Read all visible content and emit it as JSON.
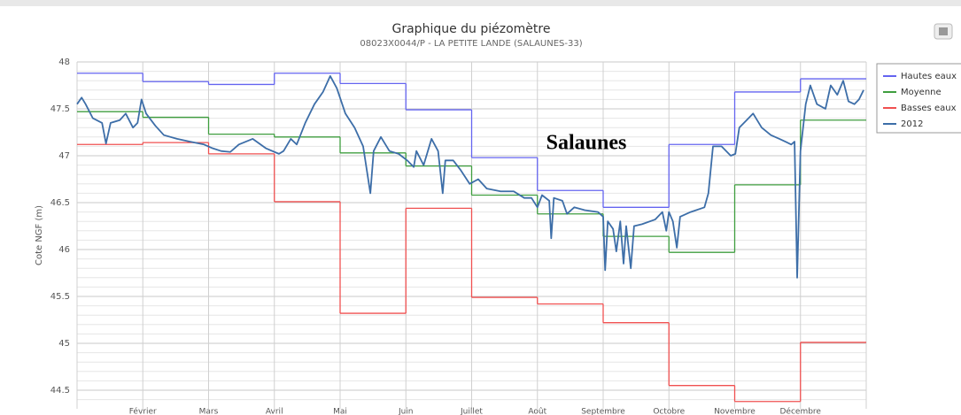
{
  "chart_data": {
    "type": "line",
    "title": "Graphique du piézomètre",
    "subtitle": "08023X0044/P - LA PETITE LANDE (SALAUNES-33)",
    "y_label": "Cote NGF (m)",
    "annotation": "Salaunes",
    "categories": [
      null,
      "Février",
      "Mars",
      "Avril",
      "Mai",
      "Juin",
      "Juillet",
      "Août",
      "Septembre",
      "Octobre",
      "Novembre",
      "Décembre"
    ],
    "xlim": [
      0,
      12
    ],
    "ylim": [
      44.3,
      48
    ],
    "yticks": [
      44.5,
      45,
      45.5,
      46,
      46.5,
      47,
      47.5,
      48
    ],
    "grid": true,
    "legend": "right",
    "series": [
      {
        "name": "Hautes eaux",
        "color": "#6464f0",
        "step": true,
        "values": [
          47.88,
          47.79,
          47.76,
          47.88,
          47.77,
          47.49,
          46.98,
          46.63,
          46.45,
          47.12,
          47.68,
          47.82
        ]
      },
      {
        "name": "Moyenne",
        "color": "#3f9e3f",
        "step": true,
        "values": [
          47.47,
          47.41,
          47.23,
          47.2,
          47.03,
          46.89,
          46.58,
          46.38,
          46.14,
          45.97,
          46.69,
          47.38
        ]
      },
      {
        "name": "Basses eaux",
        "color": "#f05050",
        "step": true,
        "values": [
          47.12,
          47.14,
          47.02,
          46.51,
          45.32,
          46.44,
          45.49,
          45.42,
          45.22,
          44.55,
          44.38,
          45.01
        ]
      },
      {
        "name": "2012",
        "color": "#3d6ea8",
        "step": false,
        "x": [
          0,
          0.07,
          0.13,
          0.24,
          0.38,
          0.44,
          0.51,
          0.65,
          0.74,
          0.85,
          0.92,
          0.98,
          1.05,
          1.19,
          1.32,
          1.52,
          1.72,
          1.93,
          2.06,
          2.19,
          2.33,
          2.46,
          2.67,
          2.87,
          3.07,
          3.14,
          3.25,
          3.34,
          3.47,
          3.61,
          3.74,
          3.85,
          3.95,
          4.08,
          4.22,
          4.35,
          4.46,
          4.51,
          4.62,
          4.75,
          4.89,
          5.02,
          5.12,
          5.16,
          5.27,
          5.39,
          5.49,
          5.56,
          5.6,
          5.72,
          5.83,
          5.97,
          6.1,
          6.23,
          6.44,
          6.64,
          6.8,
          6.91,
          7.0,
          7.07,
          7.18,
          7.21,
          7.25,
          7.38,
          7.45,
          7.56,
          7.72,
          7.92,
          8.0,
          8.03,
          8.07,
          8.15,
          8.2,
          8.26,
          8.31,
          8.35,
          8.42,
          8.47,
          8.59,
          8.79,
          8.9,
          8.96,
          9.0,
          9.06,
          9.12,
          9.17,
          9.33,
          9.54,
          9.6,
          9.67,
          9.8,
          9.94,
          10.01,
          10.07,
          10.21,
          10.28,
          10.41,
          10.55,
          10.68,
          10.86,
          10.91,
          10.95,
          11.0,
          11.08,
          11.15,
          11.25,
          11.38,
          11.46,
          11.56,
          11.65,
          11.73,
          11.82,
          11.89,
          11.96
        ],
        "values": [
          47.55,
          47.62,
          47.55,
          47.4,
          47.35,
          47.13,
          47.35,
          47.38,
          47.45,
          47.3,
          47.35,
          47.6,
          47.45,
          47.32,
          47.22,
          47.18,
          47.15,
          47.12,
          47.08,
          47.05,
          47.04,
          47.12,
          47.18,
          47.08,
          47.02,
          47.05,
          47.18,
          47.12,
          47.35,
          47.55,
          47.68,
          47.85,
          47.72,
          47.45,
          47.3,
          47.1,
          46.6,
          47.05,
          47.2,
          47.05,
          47.02,
          46.95,
          46.88,
          47.05,
          46.9,
          47.18,
          47.05,
          46.6,
          46.95,
          46.95,
          46.85,
          46.7,
          46.75,
          46.65,
          46.62,
          46.62,
          46.55,
          46.55,
          46.45,
          46.58,
          46.52,
          46.12,
          46.55,
          46.52,
          46.38,
          46.45,
          46.42,
          46.4,
          46.35,
          45.78,
          46.3,
          46.22,
          45.98,
          46.3,
          45.85,
          46.25,
          45.8,
          46.25,
          46.27,
          46.32,
          46.4,
          46.2,
          46.4,
          46.3,
          46.02,
          46.35,
          46.4,
          46.45,
          46.6,
          47.1,
          47.1,
          47.0,
          47.02,
          47.3,
          47.4,
          47.45,
          47.3,
          47.22,
          47.18,
          47.12,
          47.15,
          45.7,
          47.05,
          47.55,
          47.75,
          47.55,
          47.5,
          47.75,
          47.65,
          47.8,
          47.58,
          47.55,
          47.6,
          47.7
        ]
      }
    ]
  }
}
